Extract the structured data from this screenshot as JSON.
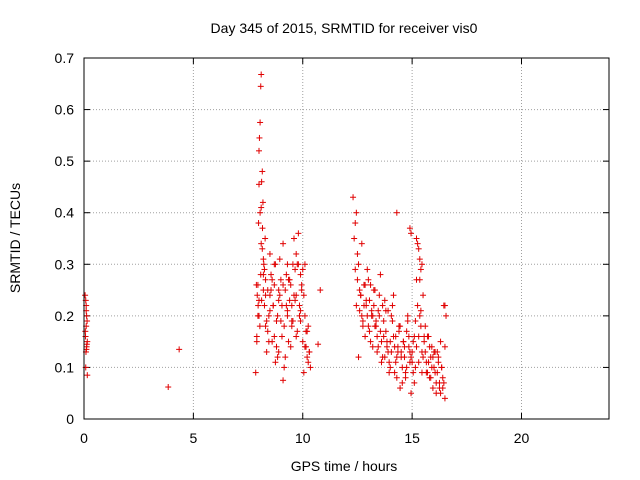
{
  "chart_data": {
    "type": "scatter",
    "title": "Day 345 of 2015, SRMTID for receiver vis0",
    "xlabel": "GPS time / hours",
    "ylabel": "SRMTID / TECUs",
    "xlim": [
      0,
      24
    ],
    "ylim": [
      0,
      0.7
    ],
    "xticks": [
      0,
      5,
      10,
      15,
      20
    ],
    "xtick_labels": [
      "0",
      "5",
      "10",
      "15",
      "20"
    ],
    "yticks": [
      0,
      0.1,
      0.2,
      0.3,
      0.4,
      0.5,
      0.6,
      0.7
    ],
    "ytick_labels": [
      "0",
      "0.1",
      "0.2",
      "0.3",
      "0.4",
      "0.5",
      "0.6",
      "0.7"
    ],
    "grid": true,
    "marker": "plus",
    "marker_color": "#e00000",
    "series": [
      {
        "name": "vis0",
        "x": [
          0.05,
          0.08,
          0.1,
          0.12,
          0.1,
          0.07,
          0.15,
          0.12,
          0.09,
          0.14,
          0.1,
          0.06,
          0.13,
          0.11,
          0.08,
          0.15,
          3.85,
          4.35,
          7.85,
          7.9,
          7.95,
          7.98,
          8.0,
          8.02,
          8.05,
          8.08,
          8.1,
          8.12,
          8.15,
          8.18,
          8.2,
          8.22,
          8.25,
          8.28,
          8.3,
          8.35,
          8.4,
          8.45,
          8.5,
          8.55,
          8.6,
          8.65,
          8.7,
          8.75,
          8.8,
          8.85,
          8.9,
          8.95,
          9.0,
          9.05,
          9.1,
          9.15,
          9.2,
          9.25,
          9.3,
          9.35,
          9.4,
          9.45,
          9.5,
          9.55,
          9.6,
          9.65,
          9.7,
          9.75,
          9.8,
          9.85,
          9.9,
          9.95,
          10.0,
          10.05,
          10.1,
          10.15,
          10.2,
          10.25,
          10.3,
          10.35,
          7.9,
          7.95,
          8.0,
          8.05,
          8.1,
          8.15,
          8.2,
          8.3,
          8.4,
          8.5,
          8.6,
          8.7,
          8.8,
          8.9,
          9.0,
          9.1,
          9.2,
          9.3,
          9.4,
          9.5,
          9.6,
          9.7,
          9.8,
          9.9,
          10.0,
          10.1,
          10.2,
          10.3,
          7.88,
          7.92,
          7.96,
          8.0,
          8.04,
          8.08,
          8.12,
          8.16,
          8.25,
          8.35,
          8.45,
          8.55,
          8.65,
          8.75,
          8.85,
          8.95,
          9.05,
          9.15,
          9.25,
          9.35,
          9.45,
          9.55,
          9.65,
          9.75,
          9.85,
          9.95,
          10.05,
          10.15,
          10.25,
          8.0,
          8.1,
          8.2,
          8.3,
          8.5,
          8.7,
          8.9,
          9.1,
          9.3,
          9.5,
          9.7,
          9.9,
          10.1,
          10.7,
          10.8,
          12.3,
          12.35,
          12.4,
          12.45,
          12.5,
          12.55,
          12.6,
          12.65,
          12.7,
          12.75,
          12.8,
          12.85,
          12.9,
          12.95,
          13.0,
          13.05,
          13.1,
          13.15,
          13.2,
          13.25,
          13.3,
          13.35,
          13.4,
          13.45,
          13.5,
          13.55,
          13.6,
          13.65,
          13.7,
          13.75,
          13.8,
          13.85,
          13.9,
          13.95,
          14.0,
          14.05,
          14.1,
          14.15,
          14.2,
          14.25,
          14.3,
          14.35,
          14.4,
          14.45,
          14.5,
          14.55,
          14.6,
          14.65,
          14.7,
          14.75,
          14.8,
          14.85,
          14.9,
          14.95,
          15.0,
          15.05,
          15.1,
          15.15,
          15.2,
          15.25,
          15.3,
          15.35,
          15.4,
          15.45,
          15.5,
          15.55,
          15.6,
          15.65,
          15.7,
          15.75,
          15.8,
          15.85,
          15.9,
          15.95,
          16.0,
          16.05,
          16.1,
          16.15,
          16.2,
          16.25,
          16.3,
          16.35,
          16.4,
          16.45,
          16.5,
          12.4,
          12.5,
          12.6,
          12.7,
          12.8,
          12.9,
          13.0,
          13.1,
          13.2,
          13.3,
          13.4,
          13.5,
          13.6,
          13.7,
          13.8,
          13.9,
          14.0,
          14.1,
          14.2,
          14.3,
          14.4,
          14.5,
          14.6,
          14.7,
          14.8,
          14.9,
          15.0,
          15.1,
          15.2,
          15.3,
          15.4,
          15.5,
          15.6,
          15.7,
          15.8,
          15.9,
          16.0,
          16.1,
          16.2,
          16.3,
          16.4,
          16.5,
          12.45,
          12.55,
          12.65,
          12.75,
          12.85,
          12.95,
          13.05,
          13.15,
          13.25,
          13.35,
          13.45,
          13.55,
          13.65,
          13.75,
          13.85,
          13.95,
          14.05,
          14.15,
          14.25,
          14.35,
          14.45,
          14.55,
          14.65,
          14.75,
          14.85,
          14.95,
          15.05,
          15.15,
          15.25,
          15.35,
          15.45,
          15.55,
          15.65,
          15.75,
          15.85,
          15.95,
          16.05,
          16.15,
          16.25,
          16.35,
          16.45,
          14.3,
          15.2,
          15.3,
          15.35,
          15.4,
          15.45,
          14.9,
          14.95,
          16.5,
          16.55
        ],
        "y": [
          0.24,
          0.23,
          0.21,
          0.2,
          0.18,
          0.16,
          0.15,
          0.14,
          0.13,
          0.19,
          0.22,
          0.17,
          0.145,
          0.135,
          0.1,
          0.085,
          0.062,
          0.135,
          0.09,
          0.15,
          0.26,
          0.38,
          0.52,
          0.545,
          0.575,
          0.645,
          0.668,
          0.46,
          0.48,
          0.42,
          0.25,
          0.3,
          0.22,
          0.35,
          0.18,
          0.13,
          0.25,
          0.2,
          0.32,
          0.28,
          0.15,
          0.22,
          0.26,
          0.3,
          0.19,
          0.12,
          0.25,
          0.31,
          0.27,
          0.22,
          0.34,
          0.18,
          0.25,
          0.28,
          0.21,
          0.15,
          0.23,
          0.26,
          0.19,
          0.3,
          0.35,
          0.29,
          0.24,
          0.17,
          0.3,
          0.22,
          0.19,
          0.26,
          0.15,
          0.24,
          0.2,
          0.17,
          0.12,
          0.11,
          0.13,
          0.1,
          0.16,
          0.2,
          0.23,
          0.4,
          0.41,
          0.33,
          0.28,
          0.24,
          0.17,
          0.21,
          0.27,
          0.16,
          0.14,
          0.23,
          0.19,
          0.26,
          0.12,
          0.2,
          0.27,
          0.18,
          0.24,
          0.16,
          0.36,
          0.21,
          0.29,
          0.14,
          0.17,
          0.13,
          0.26,
          0.24,
          0.22,
          0.2,
          0.18,
          0.28,
          0.23,
          0.37,
          0.29,
          0.19,
          0.15,
          0.25,
          0.22,
          0.11,
          0.2,
          0.24,
          0.16,
          0.1,
          0.22,
          0.27,
          0.14,
          0.19,
          0.23,
          0.3,
          0.2,
          0.25,
          0.09,
          0.14,
          0.18,
          0.455,
          0.34,
          0.31,
          0.27,
          0.24,
          0.3,
          0.13,
          0.075,
          0.3,
          0.22,
          0.32,
          0.28,
          0.3,
          0.145,
          0.25,
          0.43,
          0.35,
          0.29,
          0.22,
          0.27,
          0.12,
          0.21,
          0.24,
          0.34,
          0.19,
          0.26,
          0.16,
          0.22,
          0.29,
          0.18,
          0.23,
          0.26,
          0.2,
          0.14,
          0.22,
          0.25,
          0.18,
          0.16,
          0.21,
          0.2,
          0.28,
          0.15,
          0.12,
          0.19,
          0.23,
          0.17,
          0.14,
          0.21,
          0.11,
          0.15,
          0.13,
          0.19,
          0.24,
          0.09,
          0.16,
          0.12,
          0.14,
          0.18,
          0.06,
          0.13,
          0.1,
          0.15,
          0.12,
          0.08,
          0.17,
          0.2,
          0.14,
          0.11,
          0.05,
          0.13,
          0.09,
          0.16,
          0.19,
          0.14,
          0.22,
          0.11,
          0.27,
          0.18,
          0.13,
          0.24,
          0.16,
          0.13,
          0.09,
          0.16,
          0.11,
          0.08,
          0.12,
          0.14,
          0.06,
          0.1,
          0.13,
          0.05,
          0.09,
          0.12,
          0.07,
          0.15,
          0.1,
          0.06,
          0.22,
          0.14,
          0.38,
          0.32,
          0.25,
          0.2,
          0.22,
          0.23,
          0.27,
          0.15,
          0.2,
          0.18,
          0.13,
          0.24,
          0.11,
          0.16,
          0.21,
          0.13,
          0.1,
          0.22,
          0.14,
          0.08,
          0.17,
          0.12,
          0.15,
          0.09,
          0.19,
          0.13,
          0.11,
          0.07,
          0.27,
          0.16,
          0.21,
          0.12,
          0.18,
          0.09,
          0.14,
          0.1,
          0.13,
          0.07,
          0.11,
          0.05,
          0.08,
          0.04,
          0.4,
          0.3,
          0.24,
          0.18,
          0.26,
          0.2,
          0.17,
          0.21,
          0.25,
          0.19,
          0.14,
          0.17,
          0.22,
          0.12,
          0.15,
          0.09,
          0.2,
          0.16,
          0.11,
          0.13,
          0.18,
          0.07,
          0.14,
          0.1,
          0.16,
          0.12,
          0.15,
          0.1,
          0.34,
          0.2,
          0.09,
          0.15,
          0.11,
          0.16,
          0.08,
          0.12,
          0.09,
          0.13,
          0.06,
          0.1,
          0.07,
          0.4,
          0.35,
          0.33,
          0.31,
          0.29,
          0.3,
          0.37,
          0.36,
          0.22,
          0.2
        ]
      }
    ]
  }
}
